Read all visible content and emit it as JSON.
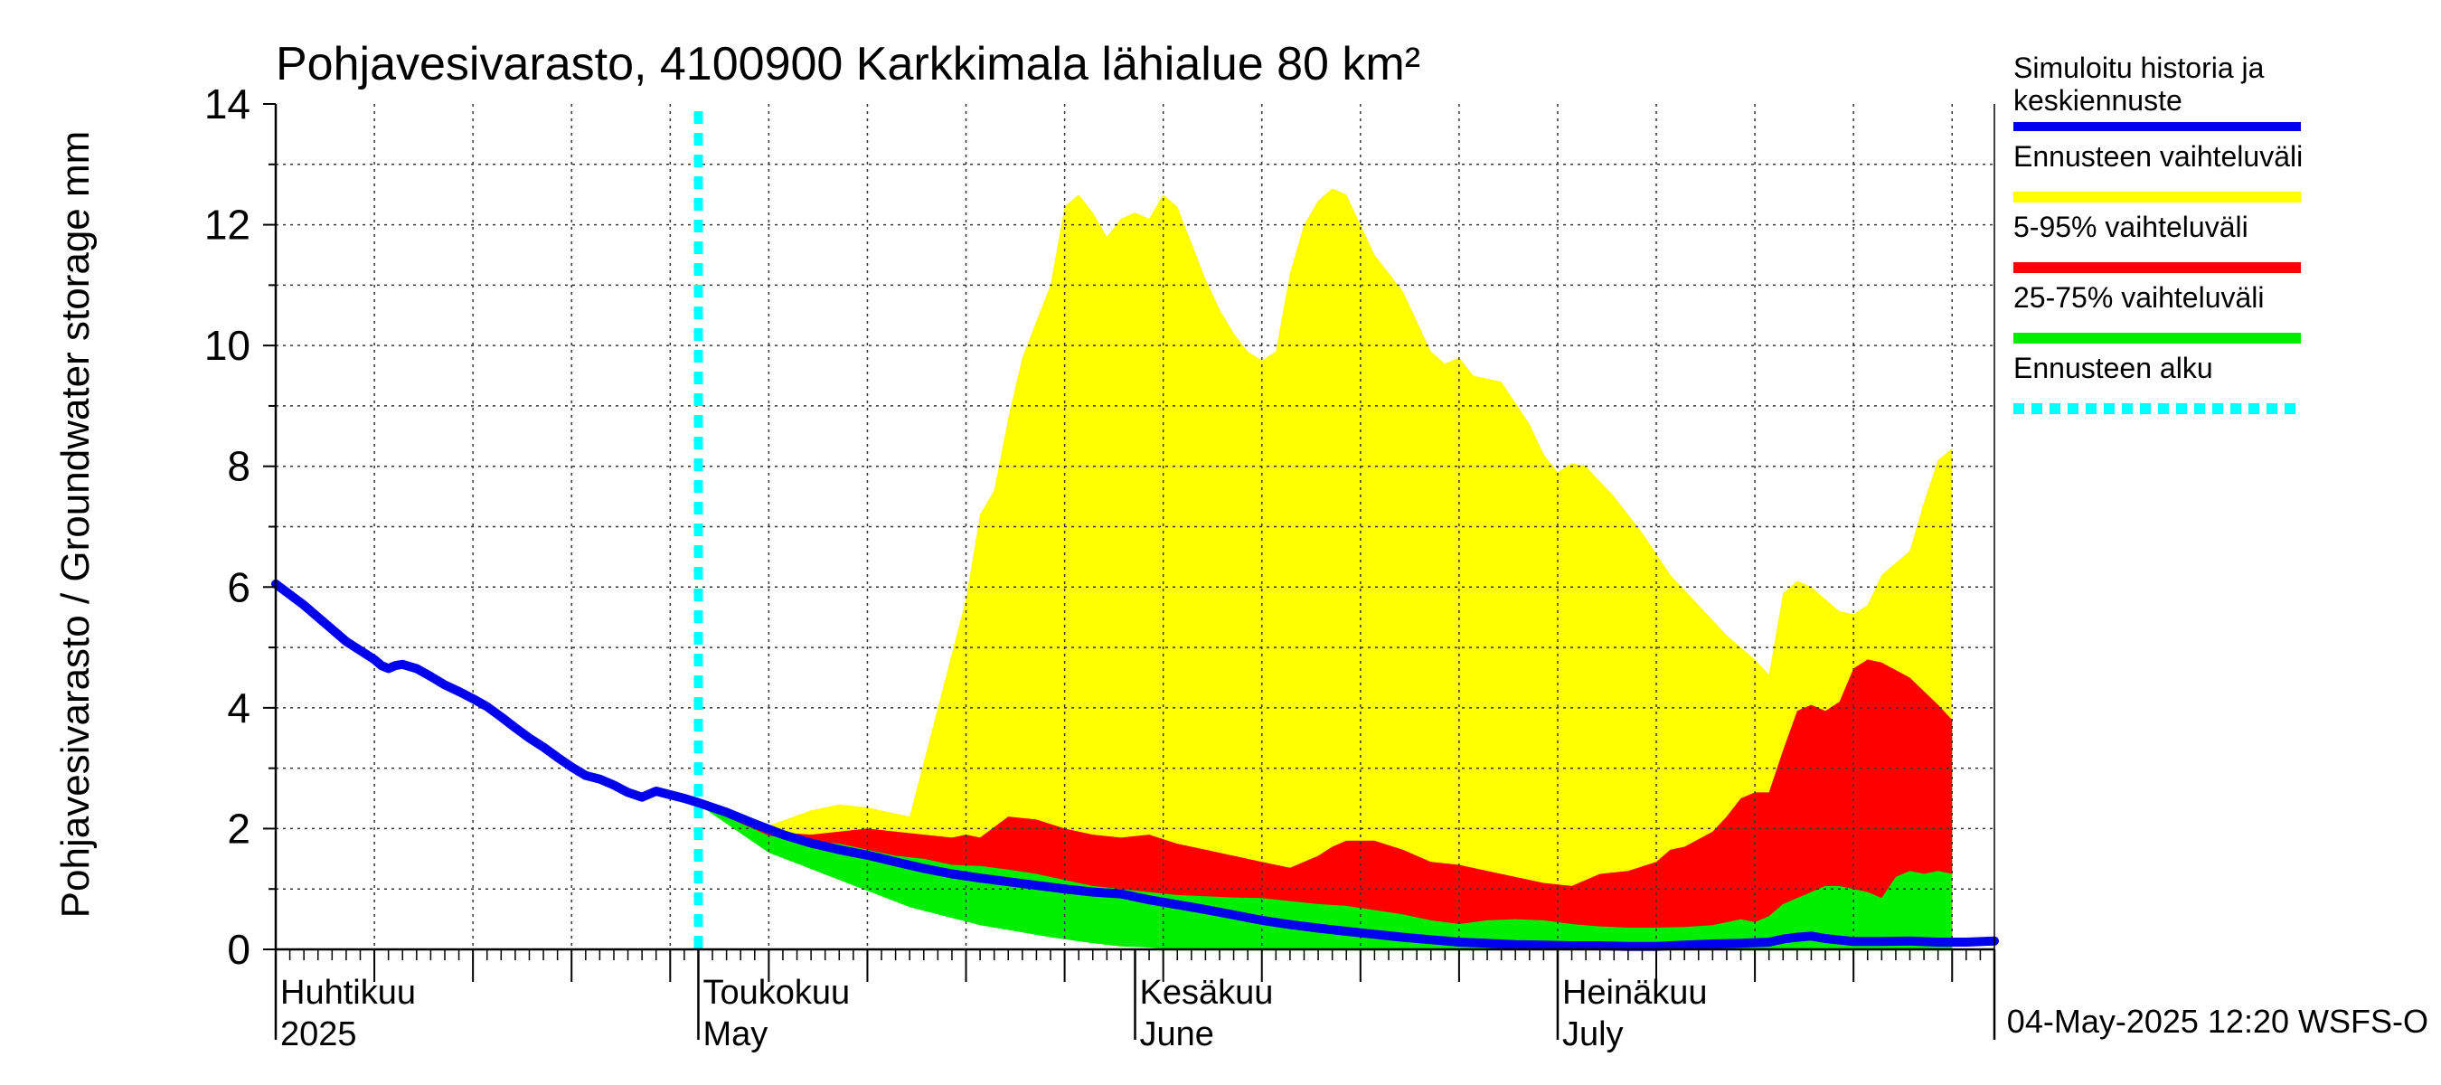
{
  "chart_data": {
    "type": "area",
    "title": "Pohjavesivarasto, 4100900 Karkkimala lähialue 80 km²",
    "ylabel": "Pohjavesivarasto / Groundwater storage   mm",
    "ylim": [
      0,
      14
    ],
    "yticks": [
      0,
      2,
      4,
      6,
      8,
      10,
      12,
      14
    ],
    "x_start_date": "2025-04-01",
    "x_end_date": "2025-08-01",
    "forecast_start_day": 30,
    "month_labels": [
      {
        "day": 0,
        "fi": "Huhtikuu",
        "en": "2025"
      },
      {
        "day": 30,
        "fi": "Toukokuu",
        "en": "May"
      },
      {
        "day": 61,
        "fi": "Kesäkuu",
        "en": "June"
      },
      {
        "day": 91,
        "fi": "Heinäkuu",
        "en": "July"
      }
    ],
    "series": [
      {
        "name": "Simuloitu historia ja keskiennuste",
        "color": "#0000ee",
        "points": [
          [
            0,
            6.05
          ],
          [
            2,
            5.7
          ],
          [
            4,
            5.3
          ],
          [
            5,
            5.1
          ],
          [
            6,
            4.95
          ],
          [
            7,
            4.8
          ],
          [
            7.5,
            4.7
          ],
          [
            8,
            4.65
          ],
          [
            8.5,
            4.7
          ],
          [
            9,
            4.72
          ],
          [
            10,
            4.65
          ],
          [
            11,
            4.52
          ],
          [
            12,
            4.38
          ],
          [
            13,
            4.27
          ],
          [
            14,
            4.15
          ],
          [
            15,
            4.02
          ],
          [
            16,
            3.85
          ],
          [
            17,
            3.67
          ],
          [
            18,
            3.5
          ],
          [
            19,
            3.35
          ],
          [
            20,
            3.18
          ],
          [
            21,
            3.02
          ],
          [
            22,
            2.88
          ],
          [
            23,
            2.82
          ],
          [
            24,
            2.72
          ],
          [
            25,
            2.6
          ],
          [
            26,
            2.52
          ],
          [
            27,
            2.62
          ],
          [
            28,
            2.56
          ],
          [
            29,
            2.5
          ],
          [
            30,
            2.43
          ],
          [
            32,
            2.27
          ],
          [
            34,
            2.08
          ],
          [
            36,
            1.9
          ],
          [
            38,
            1.76
          ],
          [
            40,
            1.65
          ],
          [
            42,
            1.56
          ],
          [
            44,
            1.45
          ],
          [
            46,
            1.34
          ],
          [
            48,
            1.25
          ],
          [
            50,
            1.18
          ],
          [
            52,
            1.12
          ],
          [
            54,
            1.06
          ],
          [
            56,
            1.0
          ],
          [
            58,
            0.95
          ],
          [
            60,
            0.92
          ],
          [
            62,
            0.82
          ],
          [
            64,
            0.74
          ],
          [
            66,
            0.66
          ],
          [
            68,
            0.57
          ],
          [
            70,
            0.48
          ],
          [
            72,
            0.41
          ],
          [
            74,
            0.35
          ],
          [
            76,
            0.3
          ],
          [
            78,
            0.25
          ],
          [
            80,
            0.2
          ],
          [
            82,
            0.16
          ],
          [
            84,
            0.12
          ],
          [
            86,
            0.1
          ],
          [
            88,
            0.08
          ],
          [
            90,
            0.07
          ],
          [
            92,
            0.06
          ],
          [
            94,
            0.06
          ],
          [
            96,
            0.05
          ],
          [
            98,
            0.05
          ],
          [
            100,
            0.07
          ],
          [
            102,
            0.09
          ],
          [
            104,
            0.1
          ],
          [
            106,
            0.12
          ],
          [
            107,
            0.17
          ],
          [
            108,
            0.2
          ],
          [
            109,
            0.22
          ],
          [
            110,
            0.18
          ],
          [
            112,
            0.13
          ],
          [
            114,
            0.13
          ],
          [
            116,
            0.14
          ],
          [
            118,
            0.12
          ],
          [
            120,
            0.12
          ],
          [
            122,
            0.14
          ]
        ]
      },
      {
        "name": "Ennusteen vaihteluväli",
        "color": "#ffff00",
        "upper": [
          [
            30,
            2.45
          ],
          [
            35,
            2.05
          ],
          [
            38,
            2.3
          ],
          [
            40,
            2.4
          ],
          [
            42,
            2.35
          ],
          [
            45,
            2.2
          ],
          [
            47,
            4.0
          ],
          [
            49,
            5.8
          ],
          [
            50,
            7.2
          ],
          [
            51,
            7.6
          ],
          [
            52,
            8.8
          ],
          [
            53,
            9.8
          ],
          [
            55,
            11.0
          ],
          [
            56,
            12.3
          ],
          [
            57,
            12.5
          ],
          [
            58,
            12.2
          ],
          [
            59,
            11.8
          ],
          [
            60,
            12.1
          ],
          [
            61,
            12.2
          ],
          [
            62,
            12.1
          ],
          [
            63,
            12.5
          ],
          [
            64,
            12.3
          ],
          [
            65,
            11.7
          ],
          [
            66,
            11.1
          ],
          [
            67,
            10.6
          ],
          [
            68,
            10.2
          ],
          [
            69,
            9.9
          ],
          [
            70,
            9.75
          ],
          [
            71,
            9.9
          ],
          [
            72,
            11.2
          ],
          [
            73,
            12.0
          ],
          [
            74,
            12.4
          ],
          [
            75,
            12.6
          ],
          [
            76,
            12.5
          ],
          [
            77,
            12.0
          ],
          [
            78,
            11.5
          ],
          [
            80,
            10.9
          ],
          [
            82,
            9.9
          ],
          [
            83,
            9.7
          ],
          [
            84,
            9.8
          ],
          [
            85,
            9.5
          ],
          [
            87,
            9.4
          ],
          [
            89,
            8.7
          ],
          [
            90,
            8.2
          ],
          [
            91,
            7.9
          ],
          [
            92,
            8.05
          ],
          [
            93,
            8.0
          ],
          [
            95,
            7.5
          ],
          [
            97,
            6.9
          ],
          [
            99,
            6.2
          ],
          [
            101,
            5.7
          ],
          [
            103,
            5.2
          ],
          [
            105,
            4.8
          ],
          [
            106,
            4.55
          ],
          [
            107,
            5.9
          ],
          [
            108,
            6.1
          ],
          [
            109,
            6.0
          ],
          [
            110,
            5.8
          ],
          [
            111,
            5.6
          ],
          [
            112,
            5.55
          ],
          [
            113,
            5.7
          ],
          [
            114,
            6.2
          ],
          [
            115,
            6.4
          ],
          [
            116,
            6.6
          ],
          [
            117,
            7.4
          ],
          [
            118,
            8.1
          ],
          [
            119,
            8.3
          ]
        ],
        "lower": [
          [
            30,
            2.4
          ],
          [
            35,
            1.8
          ],
          [
            40,
            1.35
          ],
          [
            45,
            1.05
          ],
          [
            50,
            0.82
          ],
          [
            55,
            0.6
          ],
          [
            60,
            0.42
          ],
          [
            62,
            0.28
          ],
          [
            64,
            0.1
          ],
          [
            66,
            0.0
          ],
          [
            119,
            0.0
          ]
        ]
      },
      {
        "name": "5-95% vaihteluväli",
        "color": "#ff0000",
        "upper": [
          [
            30,
            2.42
          ],
          [
            35,
            1.95
          ],
          [
            38,
            1.9
          ],
          [
            40,
            1.95
          ],
          [
            42,
            2.0
          ],
          [
            44,
            1.95
          ],
          [
            46,
            1.9
          ],
          [
            48,
            1.85
          ],
          [
            49,
            1.9
          ],
          [
            50,
            1.85
          ],
          [
            52,
            2.2
          ],
          [
            54,
            2.15
          ],
          [
            56,
            2.0
          ],
          [
            58,
            1.9
          ],
          [
            60,
            1.85
          ],
          [
            62,
            1.9
          ],
          [
            64,
            1.75
          ],
          [
            66,
            1.65
          ],
          [
            68,
            1.55
          ],
          [
            70,
            1.45
          ],
          [
            72,
            1.35
          ],
          [
            74,
            1.55
          ],
          [
            75,
            1.7
          ],
          [
            76,
            1.8
          ],
          [
            78,
            1.8
          ],
          [
            80,
            1.65
          ],
          [
            82,
            1.45
          ],
          [
            84,
            1.4
          ],
          [
            86,
            1.3
          ],
          [
            88,
            1.2
          ],
          [
            90,
            1.1
          ],
          [
            92,
            1.05
          ],
          [
            94,
            1.25
          ],
          [
            96,
            1.3
          ],
          [
            98,
            1.45
          ],
          [
            99,
            1.65
          ],
          [
            100,
            1.7
          ],
          [
            102,
            1.95
          ],
          [
            103,
            2.2
          ],
          [
            104,
            2.5
          ],
          [
            105,
            2.6
          ],
          [
            106,
            2.6
          ],
          [
            107,
            3.3
          ],
          [
            108,
            3.95
          ],
          [
            109,
            4.05
          ],
          [
            110,
            3.95
          ],
          [
            111,
            4.1
          ],
          [
            112,
            4.65
          ],
          [
            113,
            4.8
          ],
          [
            114,
            4.75
          ],
          [
            116,
            4.5
          ],
          [
            118,
            4.05
          ],
          [
            119,
            3.8
          ]
        ],
        "lower": [
          [
            30,
            2.4
          ],
          [
            35,
            1.75
          ],
          [
            40,
            1.25
          ],
          [
            45,
            0.85
          ],
          [
            50,
            0.6
          ],
          [
            55,
            0.4
          ],
          [
            60,
            0.22
          ],
          [
            62,
            0.15
          ],
          [
            64,
            0.0
          ],
          [
            119,
            0.0
          ]
        ]
      },
      {
        "name": "25-75% vaihteluväli",
        "color": "#00ee00",
        "upper": [
          [
            30,
            2.4
          ],
          [
            35,
            1.88
          ],
          [
            38,
            1.8
          ],
          [
            40,
            1.75
          ],
          [
            42,
            1.65
          ],
          [
            44,
            1.55
          ],
          [
            46,
            1.5
          ],
          [
            48,
            1.4
          ],
          [
            50,
            1.38
          ],
          [
            52,
            1.32
          ],
          [
            54,
            1.25
          ],
          [
            56,
            1.15
          ],
          [
            58,
            1.05
          ],
          [
            60,
            1.0
          ],
          [
            62,
            0.95
          ],
          [
            64,
            0.9
          ],
          [
            66,
            0.88
          ],
          [
            68,
            0.86
          ],
          [
            70,
            0.85
          ],
          [
            72,
            0.8
          ],
          [
            74,
            0.75
          ],
          [
            76,
            0.72
          ],
          [
            78,
            0.65
          ],
          [
            80,
            0.58
          ],
          [
            82,
            0.48
          ],
          [
            84,
            0.42
          ],
          [
            86,
            0.48
          ],
          [
            88,
            0.5
          ],
          [
            90,
            0.48
          ],
          [
            92,
            0.42
          ],
          [
            94,
            0.38
          ],
          [
            96,
            0.36
          ],
          [
            98,
            0.36
          ],
          [
            100,
            0.37
          ],
          [
            102,
            0.4
          ],
          [
            104,
            0.5
          ],
          [
            105,
            0.45
          ],
          [
            106,
            0.55
          ],
          [
            107,
            0.75
          ],
          [
            108,
            0.85
          ],
          [
            109,
            0.95
          ],
          [
            110,
            1.05
          ],
          [
            111,
            1.05
          ],
          [
            112,
            1.0
          ],
          [
            113,
            0.95
          ],
          [
            114,
            0.85
          ],
          [
            115,
            1.2
          ],
          [
            116,
            1.3
          ],
          [
            117,
            1.25
          ],
          [
            118,
            1.3
          ],
          [
            119,
            1.25
          ]
        ],
        "lower": [
          [
            30,
            2.4
          ],
          [
            35,
            1.6
          ],
          [
            40,
            1.15
          ],
          [
            45,
            0.7
          ],
          [
            50,
            0.4
          ],
          [
            55,
            0.2
          ],
          [
            58,
            0.1
          ],
          [
            60,
            0.05
          ],
          [
            62,
            0.03
          ],
          [
            64,
            0.0
          ],
          [
            119,
            0.0
          ]
        ]
      },
      {
        "name": "Ennusteen alku",
        "color": "#00ffff",
        "x": 30
      }
    ],
    "legend": [
      {
        "label": "Simuloitu historia ja keskiennuste",
        "color": "#0000ee",
        "style": "solid"
      },
      {
        "label": "Ennusteen vaihteluväli",
        "color": "#ffff00",
        "style": "solid"
      },
      {
        "label": "5-95% vaihteluväli",
        "color": "#ff0000",
        "style": "solid"
      },
      {
        "label": "25-75% vaihteluväli",
        "color": "#00ee00",
        "style": "solid"
      },
      {
        "label": "Ennusteen alku",
        "color": "#00ffff",
        "style": "dotted"
      }
    ],
    "legend_position": "right",
    "grid": true,
    "footer": "04-May-2025 12:20 WSFS-O"
  }
}
